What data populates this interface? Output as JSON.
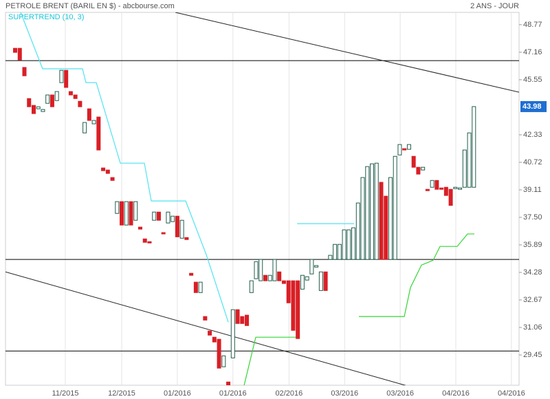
{
  "chart_data": {
    "type": "candlestick",
    "title": "PETROLE BRENT (BARIL EN $) - abcbourse.com",
    "period": "2 ANS - JOUR",
    "up_color": "#1f5c4a",
    "down_color": "#d91f26",
    "grid": true,
    "xlim": [
      -2.08,
      108.75
    ],
    "xticks": [
      {
        "value": 10.83,
        "label": "11/2015"
      },
      {
        "value": 23.0,
        "label": "12/2015"
      },
      {
        "value": 35.0,
        "label": "01/2016"
      },
      {
        "value": 47.0,
        "label": "01/2016"
      },
      {
        "value": 59.1,
        "label": "02/2016"
      },
      {
        "value": 71.1,
        "label": "03/2016"
      },
      {
        "value": 83.1,
        "label": "03/2016"
      },
      {
        "value": 95.1,
        "label": "04/2016"
      },
      {
        "value": 107.1,
        "label": "04/2016"
      }
    ],
    "ylim": [
      27.68,
      49.49
    ],
    "yticks": [
      48.77,
      47.16,
      45.55,
      42.33,
      40.72,
      39.11,
      {
        "value": 37.5,
        "label": "37.50"
      },
      35.89,
      34.28,
      32.67,
      31.06,
      29.45
    ],
    "last_color": "#1f6fd1",
    "open": [
      47.39,
      47.39,
      46.27,
      44.45,
      44.05,
      43.85,
      43.69,
      44.17,
      44.66,
      44.33,
      45.38,
      46.1,
      44.86,
      44.66,
      44.29,
      42.44,
      43.85,
      42.97,
      43.37,
      40.39,
      40.27,
      39.83,
      37.73,
      38.42,
      37.05,
      38.42,
      37.33,
      36.93,
      36.24,
      36.08,
      37.33,
      37.81,
      36.61,
      37.17,
      37.25,
      37.57,
      36.28,
      36.32,
      34.23,
      33.71,
      33.1,
      31.7,
      30.85,
      30.49,
      30.37,
      28.76,
      27.87,
      29.28,
      32.1,
      31.7,
      31.78,
      33.1,
      33.91,
      33.79,
      34.11,
      33.79,
      33.79,
      34.31,
      33.79,
      33.79,
      33.79,
      33.79,
      33.3,
      33.83,
      34.19,
      34.59,
      33.22,
      34.31,
      35.04,
      35.04,
      35.04,
      35.04,
      35.04,
      35.04,
      35.04,
      35.04,
      35.04,
      35.04,
      35.04,
      39.55,
      38.74,
      35.04,
      35.04,
      41.15,
      41.52,
      41.48,
      41.07,
      40.43,
      40.27,
      39.14,
      39.26,
      39.66,
      39.22,
      39.26,
      39.14,
      39.18,
      39.14,
      39.26,
      39.26,
      39.26
    ],
    "close": [
      47.15,
      46.71,
      45.78,
      43.97,
      43.57,
      43.97,
      43.81,
      44.66,
      43.97,
      44.86,
      46.1,
      45.1,
      44.66,
      44.45,
      43.97,
      43.05,
      43.17,
      43.17,
      41.44,
      40.23,
      40.07,
      39.66,
      38.42,
      37.05,
      38.42,
      37.05,
      38.42,
      36.81,
      36.04,
      36.0,
      37.81,
      37.33,
      36.53,
      37.81,
      37.57,
      36.36,
      37.33,
      36.2,
      34.11,
      33.1,
      33.71,
      31.49,
      30.61,
      30.21,
      28.68,
      29.4,
      27.67,
      32.1,
      31.29,
      31.29,
      31.17,
      33.79,
      34.91,
      35.04,
      33.79,
      34.11,
      35.04,
      33.79,
      33.63,
      32.5,
      30.89,
      30.41,
      34.11,
      34.03,
      35.04,
      34.68,
      34.31,
      33.22,
      35.28,
      35.92,
      35.92,
      36.77,
      36.77,
      36.89,
      38.34,
      39.83,
      40.47,
      40.63,
      40.67,
      35.04,
      35.04,
      39.83,
      41.07,
      41.76,
      41.44,
      41.76,
      40.43,
      40.03,
      40.43,
      39.06,
      39.66,
      39.14,
      39.14,
      38.78,
      38.2,
      39.26,
      39.22,
      41.44,
      42.44,
      43.98
    ],
    "indicator": {
      "label": "SUPERTREND (10, 3)",
      "label_color": "#19c6d9",
      "segments": [
        {
          "color": "#4fe3f0",
          "x": [
            1.19,
            5.93,
            14.54,
            15.28,
            17.51,
            22.7,
            27.89,
            29.38,
            36.8,
            41.25,
            46.0
          ],
          "y": [
            49.49,
            46.19,
            46.19,
            45.38,
            45.38,
            40.67,
            40.67,
            38.46,
            38.46,
            35.32,
            31.37
          ]
        },
        {
          "color": "#33d633",
          "x": [
            49.41,
            51.93,
            60.53
          ],
          "y": [
            27.67,
            30.49,
            30.49
          ]
        },
        {
          "color": "#4fe3f0",
          "x": [
            60.83,
            73.15
          ],
          "y": [
            37.13,
            37.13
          ]
        },
        {
          "color": "#33d633",
          "x": [
            74.18,
            83.98,
            85.31,
            87.69,
            90.21,
            91.69,
            95.4,
            97.63,
            99.11
          ],
          "y": [
            31.7,
            31.7,
            33.39,
            34.71,
            34.99,
            35.8,
            35.8,
            36.53,
            36.53
          ]
        }
      ]
    },
    "levels": [
      46.67,
      35.04,
      29.68
    ],
    "trendlines": [
      {
        "x": [
          34.57,
          108.75
        ],
        "y": [
          49.49,
          44.82
        ]
      },
      {
        "x": [
          -2.08,
          84.27
        ],
        "y": [
          34.31,
          27.67
        ]
      }
    ]
  }
}
